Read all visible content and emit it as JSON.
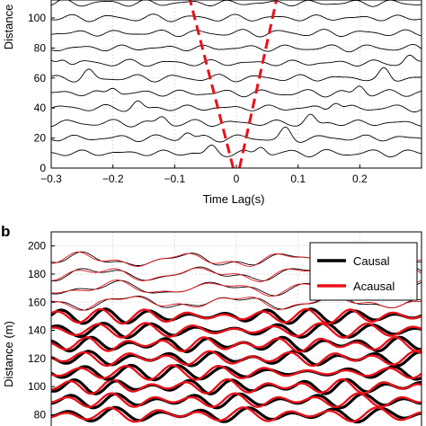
{
  "chart_data": [
    {
      "panel_label": "",
      "type": "line",
      "xlabel": "Time Lag(s)",
      "ylabel": "Distance",
      "xlim": [
        -0.3,
        0.3
      ],
      "ylim": [
        0,
        112
      ],
      "grid": true,
      "x_ticks": [
        "−0.3",
        "−0.2",
        "−0.1",
        "0",
        "0.1",
        "0.2"
      ],
      "x_tick_values": [
        -0.3,
        -0.2,
        -0.1,
        0,
        0.1,
        0.2
      ],
      "y_ticks": [
        "0",
        "20",
        "40",
        "60",
        "80",
        "100"
      ],
      "y_tick_values": [
        0,
        20,
        40,
        60,
        80,
        100
      ],
      "trace_offsets": [
        10,
        20,
        30,
        40,
        50,
        60,
        70,
        80,
        90,
        100,
        110
      ],
      "series": [
        {
          "style": "waveform traces",
          "color": "#000000"
        },
        {
          "style": "dashed moveout",
          "color": "#e8111b",
          "x": [
            -0.005,
            -0.075
          ],
          "y": [
            0,
            112
          ]
        },
        {
          "style": "dashed moveout",
          "color": "#e8111b",
          "x": [
            0.005,
            0.065
          ],
          "y": [
            0,
            112
          ]
        }
      ]
    },
    {
      "panel_label": "b",
      "type": "line",
      "xlabel": "",
      "ylabel": "Distance (m)",
      "xlim": [
        -0.3,
        0.3
      ],
      "ylim": [
        72,
        210
      ],
      "grid": true,
      "y_ticks": [
        "80",
        "100",
        "120",
        "140",
        "160",
        "180",
        "200"
      ],
      "y_tick_values": [
        80,
        100,
        120,
        140,
        160,
        180,
        200
      ],
      "trace_offsets": [
        80,
        90,
        100,
        110,
        120,
        130,
        140,
        150,
        160,
        170,
        180,
        190
      ],
      "legend_position": "top-right",
      "series": [
        {
          "name": "Causal",
          "color": "#000000"
        },
        {
          "name": "Acausal",
          "color": "#e8111b"
        }
      ]
    }
  ]
}
